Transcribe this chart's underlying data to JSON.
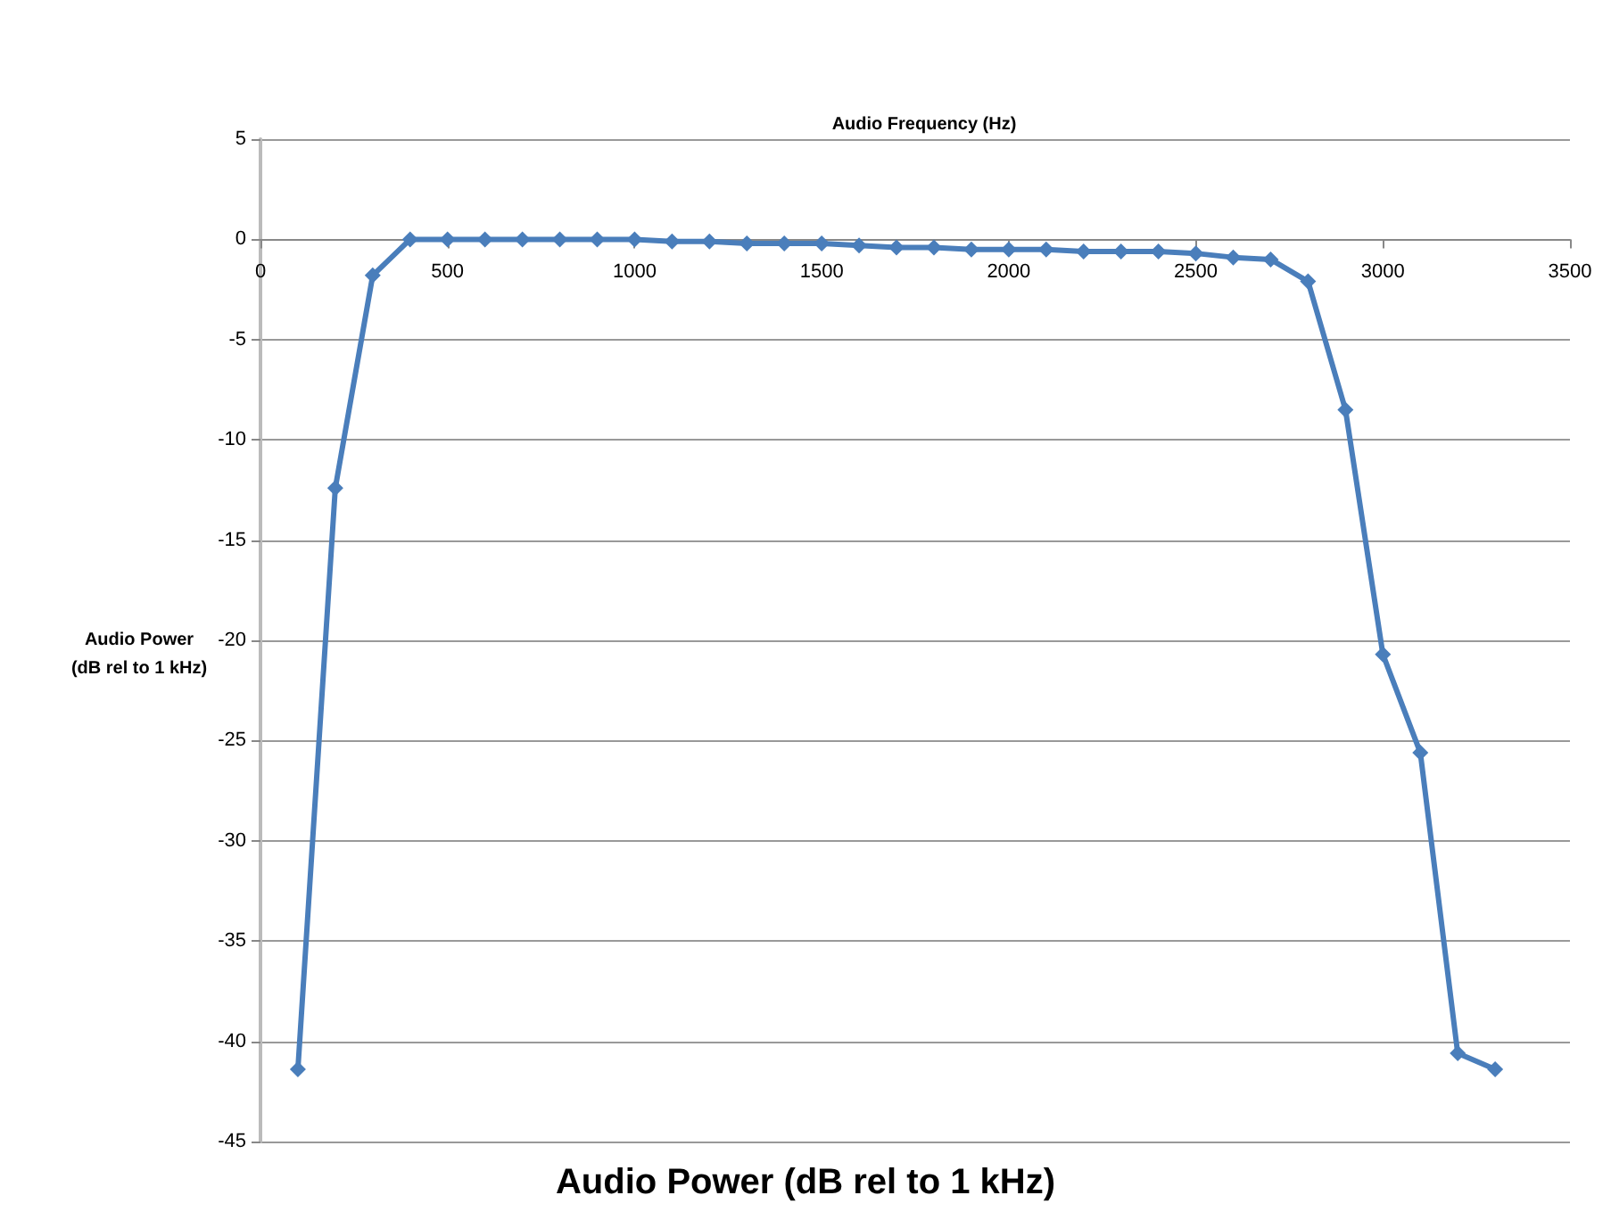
{
  "chart_data": {
    "type": "line",
    "title": "Audio Power (dB rel to 1 kHz)",
    "xlabel": "Audio Frequency (Hz)",
    "ylabel": "Audio Power\n(dB rel to 1 kHz)",
    "x": [
      100,
      200,
      300,
      400,
      500,
      600,
      700,
      800,
      900,
      1000,
      1100,
      1200,
      1300,
      1400,
      1500,
      1600,
      1700,
      1800,
      1900,
      2000,
      2100,
      2200,
      2300,
      2400,
      2500,
      2600,
      2700,
      2800,
      2900,
      3000,
      3100,
      3200,
      3300
    ],
    "series": [
      {
        "color": "#4a7ebb",
        "values": [
          -41.4,
          -12.4,
          -1.8,
          0,
          0,
          0,
          0,
          0,
          0,
          0,
          -0.1,
          -0.1,
          -0.2,
          -0.2,
          -0.2,
          -0.3,
          -0.4,
          -0.4,
          -0.5,
          -0.5,
          -0.5,
          -0.6,
          -0.6,
          -0.6,
          -0.7,
          -0.9,
          -1.0,
          -2.1,
          -8.5,
          -20.7,
          -25.6,
          -40.6,
          -41.4
        ]
      }
    ],
    "xlim": [
      0,
      3500
    ],
    "xticks": [
      0,
      500,
      1000,
      1500,
      2000,
      2500,
      3000,
      3500
    ],
    "ylim": [
      -45,
      5
    ],
    "yticks": [
      -45,
      -40,
      -35,
      -30,
      -25,
      -20,
      -15,
      -10,
      -5,
      0,
      5
    ],
    "grid": "y",
    "marker": "diamond",
    "line_style": "solid"
  }
}
